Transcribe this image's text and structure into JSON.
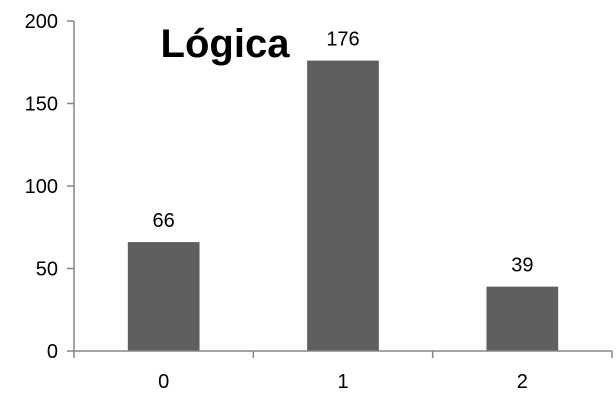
{
  "chart_data": {
    "type": "bar",
    "title": "Lógica",
    "categories": [
      "0",
      "1",
      "2"
    ],
    "values": [
      66,
      176,
      39
    ],
    "data_labels": [
      "66",
      "176",
      "39"
    ],
    "y_ticks": [
      "0",
      "50",
      "100",
      "150",
      "200"
    ],
    "xlabel": "",
    "ylabel": "",
    "ylim": [
      0,
      200
    ],
    "grid": false,
    "legend": "none",
    "bar_color": "#5f5f5f",
    "axis_color": "#868686"
  }
}
